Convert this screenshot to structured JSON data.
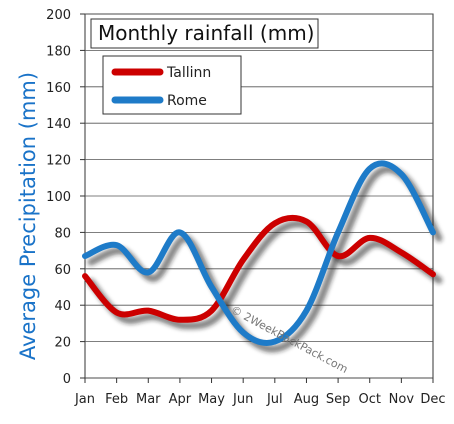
{
  "chart_data": {
    "type": "line",
    "title": "Monthly rainfall (mm)",
    "xlabel": "",
    "ylabel": "Average Precipitation (mm)",
    "categories": [
      "Jan",
      "Feb",
      "Mar",
      "Apr",
      "May",
      "Jun",
      "Jul",
      "Aug",
      "Sep",
      "Oct",
      "Nov",
      "Dec"
    ],
    "ylim": [
      0,
      200
    ],
    "yticks": [
      "0",
      "20",
      "40",
      "60",
      "80",
      "100",
      "120",
      "140",
      "160",
      "180",
      "200"
    ],
    "grid": true,
    "legend_position": "top-left",
    "series": [
      {
        "name": "Tallinn",
        "color": "#cc0000",
        "values": [
          56,
          36,
          37,
          32,
          37,
          65,
          85,
          86,
          67,
          77,
          69,
          57
        ]
      },
      {
        "name": "Rome",
        "color": "#1e7bc8",
        "values": [
          67,
          73,
          58,
          80,
          50,
          25,
          20,
          37,
          80,
          115,
          112,
          80
        ]
      }
    ],
    "watermark": "© 2WeekBackPack.com"
  }
}
